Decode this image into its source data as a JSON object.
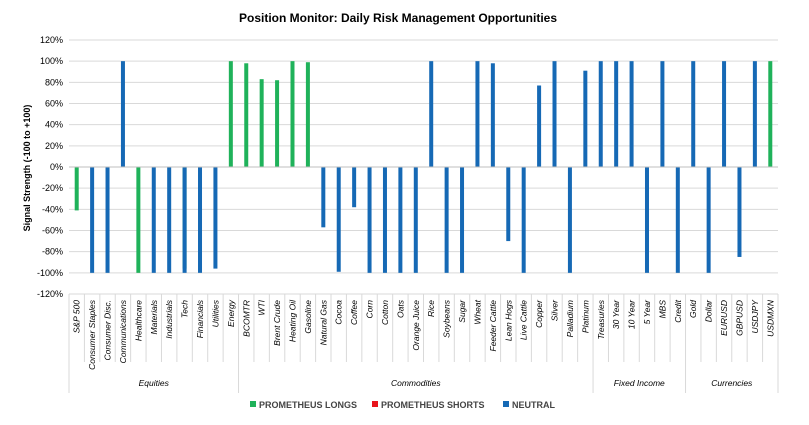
{
  "chart_data": {
    "type": "bar",
    "title": "Position Monitor: Daily Risk Management Opportunities",
    "ylabel": "Signal Strength (-100 to +100)",
    "ylim": [
      -120,
      120
    ],
    "yticks": [
      "120%",
      "100%",
      "80%",
      "60%",
      "40%",
      "20%",
      "0%",
      "-20%",
      "-40%",
      "-60%",
      "-80%",
      "-100%",
      "-120%"
    ],
    "grid": true,
    "legend_position": "bottom",
    "colors": {
      "longs": "#1fb25a",
      "shorts": "#e8141c",
      "neutral": "#1669b5"
    },
    "legend": [
      {
        "key": "longs",
        "label": "PROMETHEUS LONGS"
      },
      {
        "key": "shorts",
        "label": "PROMETHEUS SHORTS"
      },
      {
        "key": "neutral",
        "label": "NEUTRAL"
      }
    ],
    "groups": [
      {
        "label": "Equities",
        "start": 0,
        "end": 10
      },
      {
        "label": "Commodities",
        "start": 11,
        "end": 33
      },
      {
        "label": "Fixed Income",
        "start": 34,
        "end": 39
      },
      {
        "label": "Currencies",
        "start": 40,
        "end": 45
      }
    ],
    "categories": [
      "S&P 500",
      "Consumer Staples",
      "Consumer Disc.",
      "Communications",
      "Healthcare",
      "Materials",
      "Industrials",
      "Tech",
      "Financials",
      "Utilities",
      "Energy",
      "BCOMTR",
      "WTI",
      "Brent Crude",
      "Heating Oil",
      "Gasoline",
      "Natural Gas",
      "Cocoa",
      "Coffee",
      "Corn",
      "Cotton",
      "Oats",
      "Orange Juice",
      "Rice",
      "Soybeans",
      "Sugar",
      "Wheat",
      "Feeder Cattle",
      "Lean Hogs",
      "Live Cattle",
      "Copper",
      "Silver",
      "Palladium",
      "Platinum",
      "Treasuries",
      "30 Year",
      "10 Year",
      "5 Year",
      "MBS",
      "Credit",
      "Gold",
      "Dollar",
      "EURUSD",
      "GBPUSD",
      "USDJPY",
      "USDMXN"
    ],
    "series": [
      {
        "key": "longs",
        "values": [
          -41,
          null,
          null,
          null,
          -100,
          null,
          null,
          -96,
          null,
          null,
          100,
          98,
          83,
          82,
          100,
          99,
          null,
          null,
          null,
          null,
          null,
          null,
          null,
          null,
          null,
          null,
          null,
          null,
          null,
          null,
          null,
          null,
          null,
          null,
          null,
          null,
          null,
          null,
          null,
          null,
          null,
          null,
          null,
          null,
          null,
          100
        ]
      },
      {
        "key": "neutral",
        "values": [
          null,
          -100,
          -100,
          100,
          null,
          -100,
          -100,
          -100,
          -100,
          -96,
          null,
          null,
          null,
          null,
          null,
          null,
          -57,
          -99,
          -38,
          -100,
          -100,
          -100,
          -100,
          100,
          -100,
          -100,
          100,
          98,
          -70,
          -100,
          77,
          100,
          -100,
          91,
          100,
          100,
          100,
          -100,
          100,
          -100,
          100,
          -100,
          100,
          -85,
          100,
          null
        ]
      }
    ]
  }
}
